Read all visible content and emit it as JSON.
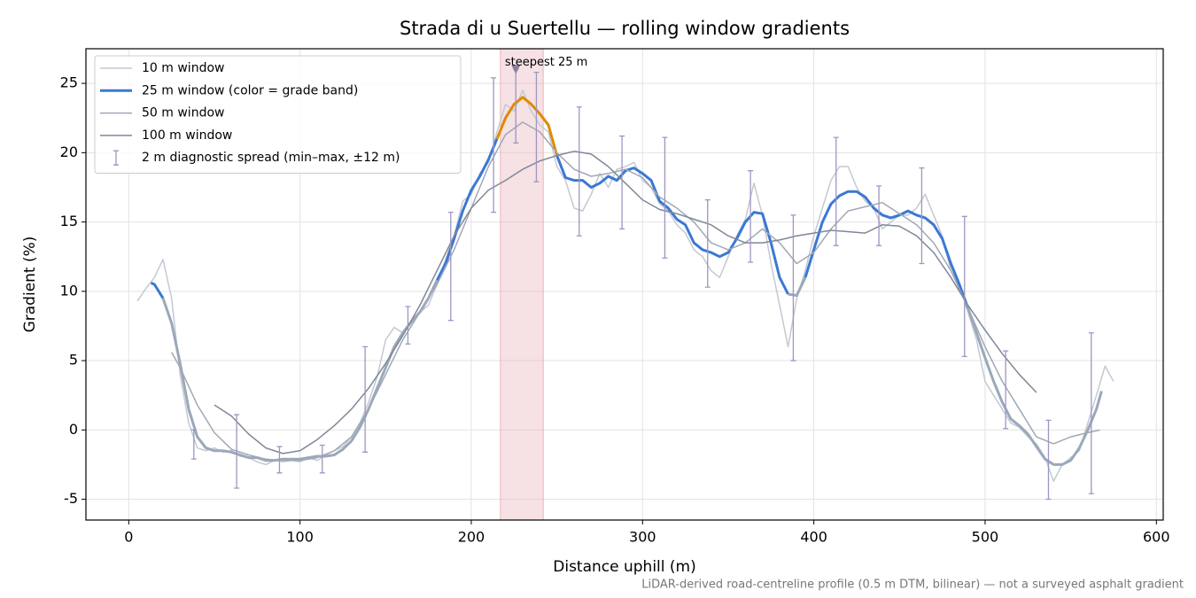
{
  "chart_data": {
    "type": "line",
    "title": "Strada di u Suertellu — rolling window gradients",
    "x_label": "Distance uphill (m)",
    "y_label": "Gradient (%)",
    "footnote": "LiDAR-derived road-centreline profile (0.5 m DTM, bilinear) — not a surveyed asphalt gradient",
    "xlim": [
      -25,
      604
    ],
    "ylim": [
      -6.5,
      27.5
    ],
    "xticks": [
      0,
      100,
      200,
      300,
      400,
      500,
      600
    ],
    "yticks": [
      -5,
      0,
      5,
      10,
      15,
      20,
      25
    ],
    "grid": true,
    "legend": "upper left",
    "highlight": {
      "xlim": [
        217,
        242
      ],
      "color": "#e8b4bb"
    },
    "annotation": {
      "text": "steepest 25 m",
      "x": 226,
      "y": 26,
      "color": "#c0202a"
    },
    "series": [
      {
        "name": "10 m window",
        "color": "#c3c9d3",
        "width": 1.5,
        "x": [
          5,
          10,
          15,
          20,
          25,
          30,
          35,
          40,
          45,
          50,
          55,
          60,
          65,
          70,
          75,
          80,
          85,
          90,
          95,
          100,
          105,
          110,
          115,
          120,
          125,
          130,
          135,
          140,
          145,
          150,
          155,
          160,
          165,
          170,
          175,
          180,
          185,
          190,
          195,
          200,
          205,
          210,
          215,
          220,
          225,
          230,
          235,
          240,
          245,
          250,
          255,
          260,
          265,
          270,
          275,
          280,
          285,
          290,
          295,
          300,
          305,
          310,
          315,
          320,
          325,
          330,
          335,
          340,
          345,
          350,
          355,
          360,
          365,
          370,
          375,
          380,
          385,
          390,
          395,
          400,
          405,
          410,
          415,
          420,
          425,
          430,
          435,
          440,
          445,
          450,
          455,
          460,
          465,
          470,
          475,
          480,
          485,
          490,
          495,
          500,
          505,
          510,
          515,
          520,
          525,
          530,
          535,
          540,
          545,
          550,
          555,
          560,
          565,
          570,
          575
        ],
        "values": [
          9.3,
          10.2,
          11.0,
          12.3,
          9.5,
          4.0,
          0.5,
          -1.3,
          -1.5,
          -1.3,
          -1.6,
          -1.5,
          -1.9,
          -2.0,
          -2.3,
          -2.5,
          -2.2,
          -2.3,
          -2.2,
          -2.3,
          -2.0,
          -2.2,
          -1.8,
          -1.5,
          -1.2,
          -0.5,
          0.5,
          2.0,
          3.8,
          6.5,
          7.4,
          7.0,
          7.8,
          8.5,
          9.0,
          10.5,
          12.3,
          14.0,
          16.5,
          17.0,
          18.5,
          19.3,
          21.5,
          23.5,
          23.0,
          24.5,
          23.0,
          22.0,
          21.5,
          19.0,
          18.0,
          16.0,
          15.8,
          17.0,
          18.5,
          17.5,
          18.8,
          19.0,
          19.3,
          18.0,
          17.5,
          16.3,
          15.8,
          14.8,
          14.2,
          13.0,
          12.5,
          11.5,
          11.0,
          12.5,
          14.0,
          15.2,
          17.8,
          15.5,
          12.0,
          9.0,
          6.0,
          9.5,
          11.5,
          14.0,
          16.0,
          18.0,
          19.0,
          19.0,
          17.5,
          16.5,
          16.0,
          14.5,
          15.0,
          15.5,
          15.5,
          16.0,
          17.0,
          15.5,
          14.0,
          11.5,
          10.5,
          8.5,
          6.5,
          3.5,
          2.5,
          1.5,
          0.5,
          0.2,
          -0.5,
          -1.0,
          -2.0,
          -3.7,
          -2.5,
          -2.0,
          -1.5,
          0.5,
          2.5,
          4.6,
          3.5
        ]
      },
      {
        "name": "25 m window (color = grade band)",
        "color": "#3a78d4",
        "width": 3,
        "bands": {
          "thresholds": [
            10,
            20
          ],
          "colors": [
            "#9aa8ba",
            "#3a78d4",
            "#e08a00"
          ]
        },
        "x": [
          13,
          15,
          20,
          25,
          30,
          35,
          40,
          45,
          50,
          55,
          60,
          65,
          70,
          75,
          80,
          85,
          90,
          95,
          100,
          105,
          110,
          115,
          120,
          125,
          130,
          135,
          140,
          145,
          150,
          155,
          160,
          165,
          170,
          175,
          180,
          185,
          190,
          195,
          200,
          205,
          210,
          215,
          220,
          225,
          230,
          235,
          240,
          245,
          250,
          255,
          260,
          265,
          270,
          275,
          280,
          285,
          290,
          295,
          300,
          305,
          310,
          315,
          320,
          325,
          330,
          335,
          340,
          345,
          350,
          355,
          360,
          365,
          370,
          375,
          380,
          385,
          390,
          395,
          400,
          405,
          410,
          415,
          420,
          425,
          430,
          435,
          440,
          445,
          450,
          455,
          460,
          465,
          470,
          475,
          480,
          485,
          490,
          495,
          500,
          505,
          510,
          515,
          520,
          525,
          530,
          535,
          540,
          545,
          550,
          555,
          560,
          565,
          568
        ],
        "values": [
          10.6,
          10.5,
          9.5,
          7.7,
          4.8,
          1.5,
          -0.5,
          -1.3,
          -1.5,
          -1.5,
          -1.6,
          -1.8,
          -2.0,
          -2.0,
          -2.2,
          -2.2,
          -2.1,
          -2.1,
          -2.1,
          -2.0,
          -1.9,
          -1.9,
          -1.8,
          -1.4,
          -0.8,
          0.2,
          1.5,
          3.0,
          4.5,
          6.0,
          7.0,
          7.8,
          8.5,
          9.5,
          10.8,
          12.0,
          13.8,
          15.8,
          17.3,
          18.3,
          19.5,
          21.0,
          22.5,
          23.5,
          24.0,
          23.5,
          22.8,
          22.0,
          19.8,
          18.2,
          18.0,
          18.0,
          17.5,
          17.8,
          18.3,
          18.0,
          18.7,
          18.9,
          18.5,
          18.0,
          16.5,
          16.0,
          15.2,
          14.8,
          13.5,
          13.0,
          12.8,
          12.5,
          12.8,
          13.8,
          15.0,
          15.7,
          15.6,
          13.5,
          11.0,
          9.8,
          9.7,
          11.0,
          13.0,
          15.0,
          16.3,
          16.9,
          17.2,
          17.2,
          16.8,
          16.0,
          15.5,
          15.3,
          15.5,
          15.8,
          15.5,
          15.3,
          14.8,
          13.8,
          12.0,
          10.5,
          8.8,
          7.0,
          5.2,
          3.5,
          2.0,
          0.8,
          0.3,
          -0.3,
          -1.2,
          -2.1,
          -2.5,
          -2.5,
          -2.2,
          -1.3,
          0.0,
          1.5,
          2.8
        ]
      },
      {
        "name": "50 m window",
        "color": "#a0a8b5",
        "width": 1.5,
        "x": [
          25,
          30,
          40,
          50,
          60,
          70,
          80,
          90,
          100,
          110,
          120,
          130,
          140,
          150,
          160,
          170,
          180,
          190,
          200,
          210,
          220,
          230,
          240,
          250,
          260,
          270,
          280,
          290,
          300,
          310,
          320,
          330,
          340,
          350,
          360,
          370,
          380,
          390,
          400,
          410,
          420,
          430,
          440,
          450,
          460,
          470,
          480,
          490,
          500,
          510,
          520,
          530,
          540,
          550,
          560,
          567
        ],
        "values": [
          5.6,
          4.5,
          1.8,
          -0.2,
          -1.4,
          -1.8,
          -2.1,
          -2.2,
          -2.2,
          -2.0,
          -1.5,
          -0.5,
          1.5,
          4.0,
          6.5,
          8.5,
          10.5,
          13.0,
          16.0,
          19.0,
          21.3,
          22.2,
          21.5,
          20.0,
          18.8,
          18.3,
          18.5,
          18.8,
          18.2,
          16.8,
          16.0,
          15.0,
          13.5,
          13.0,
          13.5,
          14.5,
          13.5,
          12.0,
          12.8,
          14.5,
          15.8,
          16.1,
          16.4,
          15.6,
          14.8,
          13.5,
          11.5,
          8.8,
          6.0,
          3.5,
          1.5,
          -0.5,
          -1.0,
          -0.5,
          -0.2,
          0.0
        ]
      },
      {
        "name": "100 m window",
        "color": "#7f8797",
        "width": 1.5,
        "x": [
          50,
          60,
          70,
          80,
          90,
          100,
          110,
          120,
          130,
          140,
          150,
          160,
          170,
          180,
          190,
          200,
          210,
          220,
          230,
          240,
          250,
          260,
          270,
          280,
          290,
          300,
          310,
          320,
          330,
          340,
          350,
          360,
          370,
          380,
          390,
          400,
          410,
          420,
          430,
          440,
          450,
          460,
          470,
          480,
          490,
          500,
          510,
          520,
          530
        ],
        "values": [
          1.8,
          1.0,
          -0.3,
          -1.3,
          -1.7,
          -1.5,
          -0.7,
          0.3,
          1.5,
          3.0,
          4.8,
          6.8,
          9.0,
          11.5,
          14.0,
          16.0,
          17.3,
          18.0,
          18.8,
          19.4,
          19.8,
          20.1,
          19.9,
          19.0,
          17.8,
          16.6,
          15.9,
          15.6,
          15.2,
          14.8,
          14.0,
          13.5,
          13.5,
          13.7,
          14.0,
          14.2,
          14.4,
          14.3,
          14.2,
          14.8,
          14.7,
          14.0,
          12.8,
          11.0,
          9.0,
          7.2,
          5.5,
          4.0,
          2.7
        ]
      }
    ],
    "errorbars": {
      "name": "2 m diagnostic spread (min–max, ±12 m)",
      "color": "#9c97c0",
      "x": [
        38,
        63,
        88,
        113,
        138,
        163,
        188,
        213,
        226,
        238,
        263,
        288,
        313,
        338,
        363,
        388,
        413,
        438,
        463,
        488,
        512,
        537,
        562
      ],
      "low": [
        -2.1,
        -4.2,
        -3.1,
        -3.1,
        -1.6,
        6.2,
        7.9,
        15.7,
        20.7,
        17.9,
        14.0,
        14.5,
        12.4,
        10.3,
        12.1,
        5.0,
        13.3,
        13.3,
        12.0,
        5.3,
        0.1,
        -5.0,
        -4.6
      ],
      "high": [
        0.0,
        1.1,
        -1.2,
        -1.1,
        6.0,
        8.9,
        15.7,
        25.4,
        26.0,
        25.8,
        23.3,
        21.2,
        21.1,
        16.6,
        18.7,
        15.5,
        21.1,
        17.6,
        18.9,
        15.4,
        5.7,
        0.7,
        7.0
      ]
    }
  }
}
